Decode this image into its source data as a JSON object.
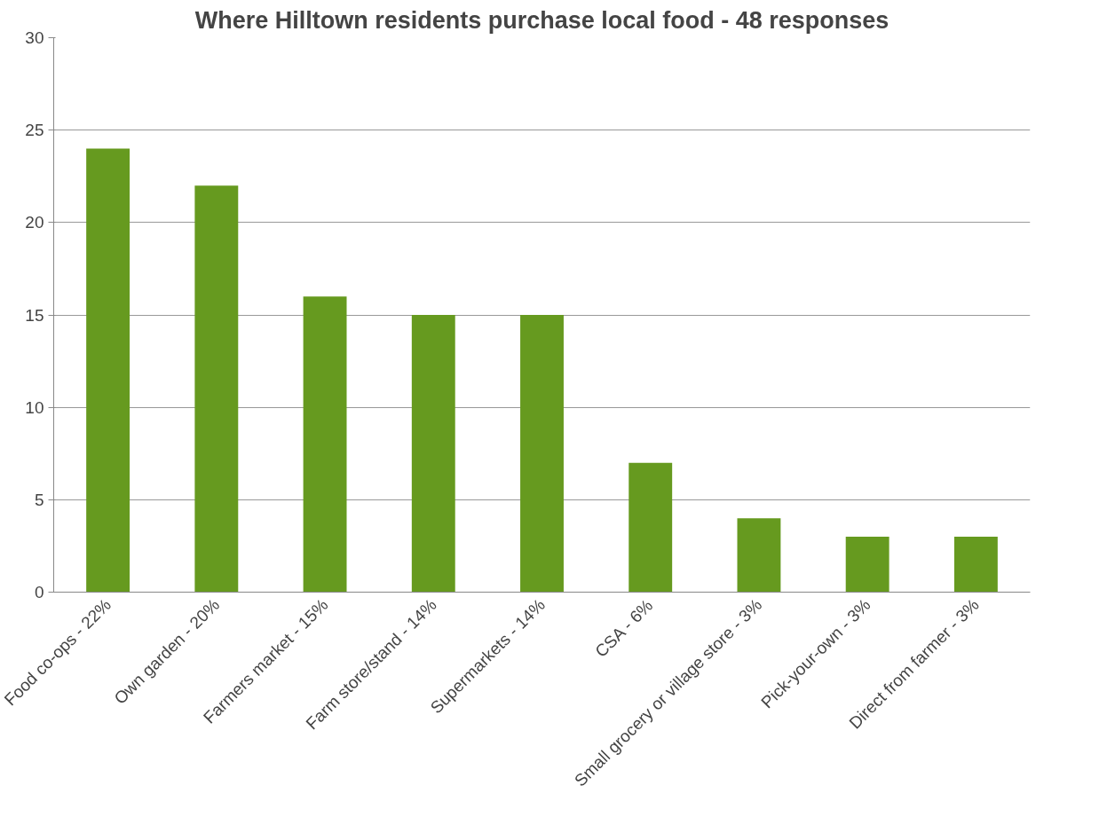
{
  "chart_data": {
    "type": "bar",
    "title": "Where Hilltown residents purchase local food - 48 responses",
    "categories": [
      "Food co-ops - 22%",
      "Own garden - 20%",
      "Farmers market - 15%",
      "Farm store/stand - 14%",
      "Supermarkets - 14%",
      "CSA - 6%",
      "Small grocery or village store - 3%",
      "Pick-your-own - 3%",
      "Direct from farmer - 3%"
    ],
    "values": [
      24,
      22,
      16,
      15,
      15,
      7,
      4,
      3,
      3
    ],
    "color": "#669a1f",
    "ylim": [
      0,
      30
    ],
    "yticks": [
      0,
      5,
      10,
      15,
      20,
      25,
      30
    ],
    "grid": "y"
  }
}
